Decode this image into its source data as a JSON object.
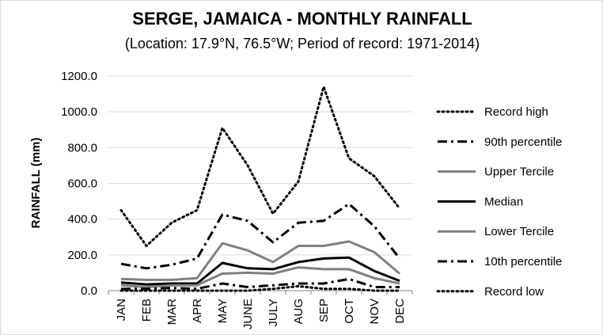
{
  "chart_data": {
    "type": "line",
    "title": "SERGE, JAMAICA - MONTHLY RAINFALL",
    "subtitle": "(Location: 17.9°N, 76.5°W; Period of record: 1971-2014)",
    "xlabel": "",
    "ylabel": "RAINFALL (mm)",
    "ylim": [
      0,
      1200
    ],
    "y_ticks": [
      0,
      200,
      400,
      600,
      800,
      1000,
      1200
    ],
    "y_tick_labels": [
      "0.0",
      "200.0",
      "400.0",
      "600.0",
      "800.0",
      "1000.0",
      "1200.0"
    ],
    "categories": [
      "JAN",
      "FEB",
      "MAR",
      "APR",
      "MAY",
      "JUNE",
      "JULY",
      "AUG",
      "SEP",
      "OCT",
      "NOV",
      "DEC"
    ],
    "grid": "horizontal",
    "legend_position": "right",
    "series": [
      {
        "name": "Record high",
        "style": "dotted",
        "color": "#000000",
        "width": 3,
        "values": [
          450,
          250,
          380,
          450,
          910,
          700,
          430,
          610,
          1140,
          740,
          640,
          460
        ]
      },
      {
        "name": "90th percentile",
        "style": "dashdot",
        "color": "#000000",
        "width": 3,
        "values": [
          150,
          125,
          145,
          180,
          425,
          390,
          270,
          380,
          390,
          485,
          360,
          180
        ]
      },
      {
        "name": "Upper Tercile",
        "style": "solid",
        "color": "#808080",
        "width": 3,
        "values": [
          65,
          60,
          60,
          70,
          265,
          225,
          160,
          250,
          250,
          275,
          215,
          95
        ]
      },
      {
        "name": "Median",
        "style": "solid",
        "color": "#000000",
        "width": 3,
        "values": [
          45,
          35,
          40,
          40,
          155,
          125,
          120,
          160,
          180,
          185,
          110,
          55
        ]
      },
      {
        "name": "Lower Tercile",
        "style": "solid",
        "color": "#808080",
        "width": 3,
        "values": [
          30,
          20,
          30,
          30,
          95,
          100,
          95,
          130,
          120,
          120,
          70,
          40
        ]
      },
      {
        "name": "10th percentile",
        "style": "dashdot",
        "color": "#000000",
        "width": 3,
        "values": [
          10,
          10,
          15,
          10,
          40,
          20,
          30,
          40,
          40,
          65,
          20,
          20
        ]
      },
      {
        "name": "Record low",
        "style": "dotted",
        "color": "#000000",
        "width": 3,
        "values": [
          0,
          0,
          0,
          0,
          0,
          0,
          10,
          25,
          10,
          10,
          0,
          0
        ]
      }
    ]
  }
}
